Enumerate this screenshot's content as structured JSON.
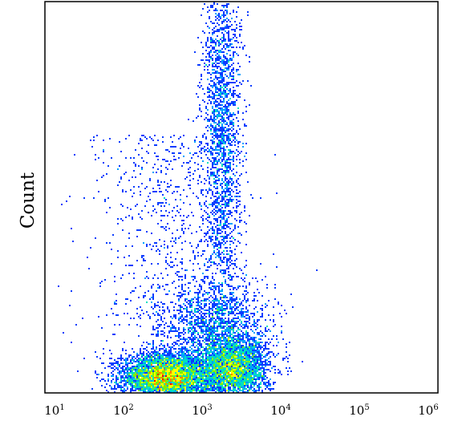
{
  "chart_data": {
    "type": "scatter",
    "subtype": "density-scatter",
    "title": "",
    "xlabel": "",
    "ylabel": "Count",
    "x_scale": "log",
    "xlim": [
      10,
      1000000
    ],
    "x_ticks": [
      {
        "value": 10,
        "base": "10",
        "exp": "1"
      },
      {
        "value": 100,
        "base": "10",
        "exp": "2"
      },
      {
        "value": 1000,
        "base": "10",
        "exp": "3"
      },
      {
        "value": 10000,
        "base": "10",
        "exp": "4"
      },
      {
        "value": 100000,
        "base": "10",
        "exp": "5"
      },
      {
        "value": 1000000,
        "base": "10",
        "exp": "6"
      }
    ],
    "y_ticks_shown": false,
    "grid": false,
    "legend": "none",
    "color_scale": [
      "#0000c8",
      "#0a3cff",
      "#00a0ff",
      "#00e0c0",
      "#7ff000",
      "#ffff00",
      "#ff8000",
      "#ff0000"
    ],
    "populations": [
      {
        "name": "",
        "x_center": 350,
        "y_center_fraction": 0.04,
        "x_spread_decades": 0.28,
        "y_spread_fraction": 0.03,
        "relative_density": 1.0
      },
      {
        "name": "",
        "x_center": 2500,
        "y_center_fraction": 0.06,
        "x_spread_decades": 0.22,
        "y_spread_fraction": 0.04,
        "relative_density": 0.65
      },
      {
        "name": "",
        "x_center": 1800,
        "y_center_fraction": 0.68,
        "x_spread_decades": 0.12,
        "y_spread_fraction": 0.26,
        "relative_density": 0.45
      },
      {
        "name": "",
        "x_center": 1500,
        "y_center_fraction": 0.17,
        "x_spread_decades": 0.35,
        "y_spread_fraction": 0.06,
        "relative_density": 0.3
      }
    ]
  }
}
